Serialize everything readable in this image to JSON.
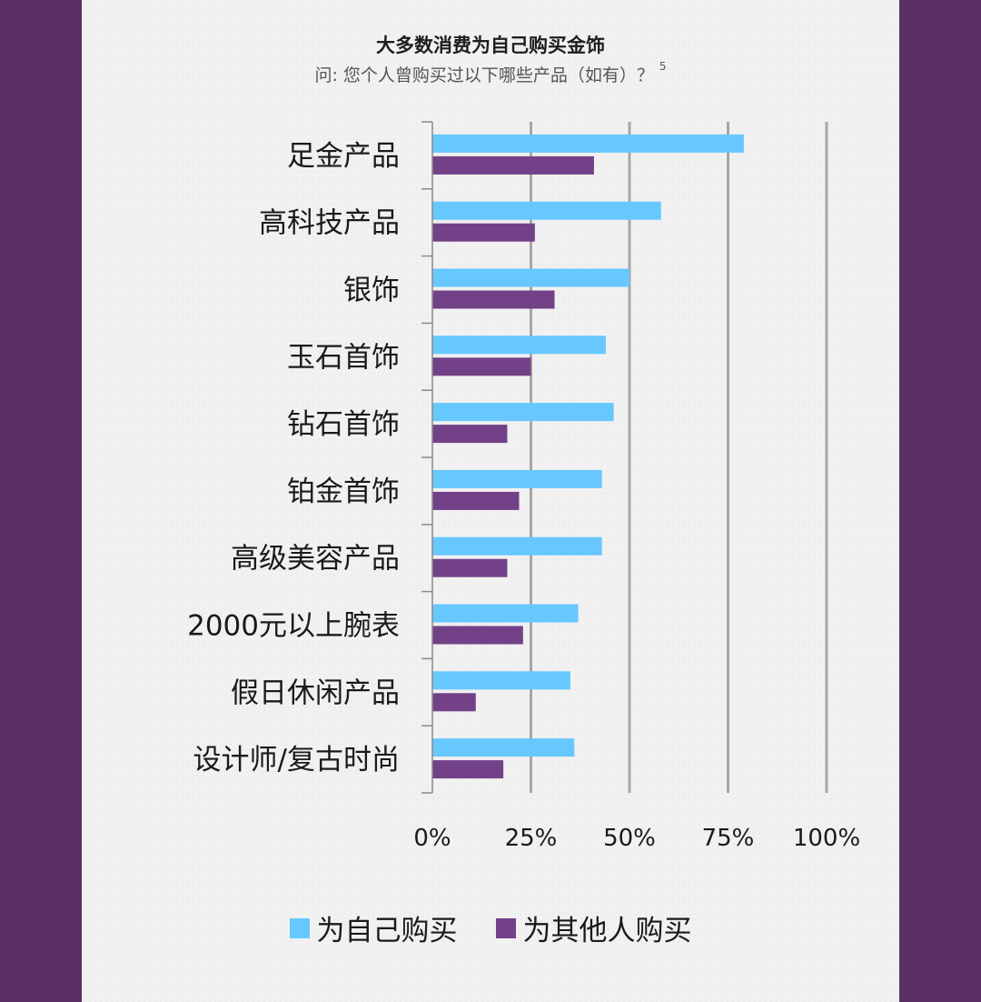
{
  "chart_data": {
    "type": "bar",
    "orientation": "horizontal",
    "title": "大多数消费为自己购买金饰",
    "subtitle": "问: 您个人曾购买过以下哪些产品（如有）？",
    "footnote_mark": "5",
    "categories": [
      "足金产品",
      "高科技产品",
      "银饰",
      "玉石首饰",
      "钻石首饰",
      "铂金首饰",
      "高级美容产品",
      "2000元以上腕表",
      "假日休闲产品",
      "设计师/复古时尚"
    ],
    "series": [
      {
        "name": "为自己购买",
        "color": "#66c8ff",
        "values": [
          79,
          58,
          50,
          44,
          46,
          43,
          43,
          37,
          35,
          36
        ]
      },
      {
        "name": "为其他人购买",
        "color": "#724187",
        "values": [
          41,
          26,
          31,
          25,
          19,
          22,
          19,
          23,
          11,
          18
        ]
      }
    ],
    "xlim": [
      0,
      100
    ],
    "xticks": [
      0,
      25,
      50,
      75,
      100
    ],
    "xtick_labels": [
      "0%",
      "25%",
      "50%",
      "75%",
      "100%"
    ],
    "grid": true,
    "legend_position": "bottom"
  }
}
